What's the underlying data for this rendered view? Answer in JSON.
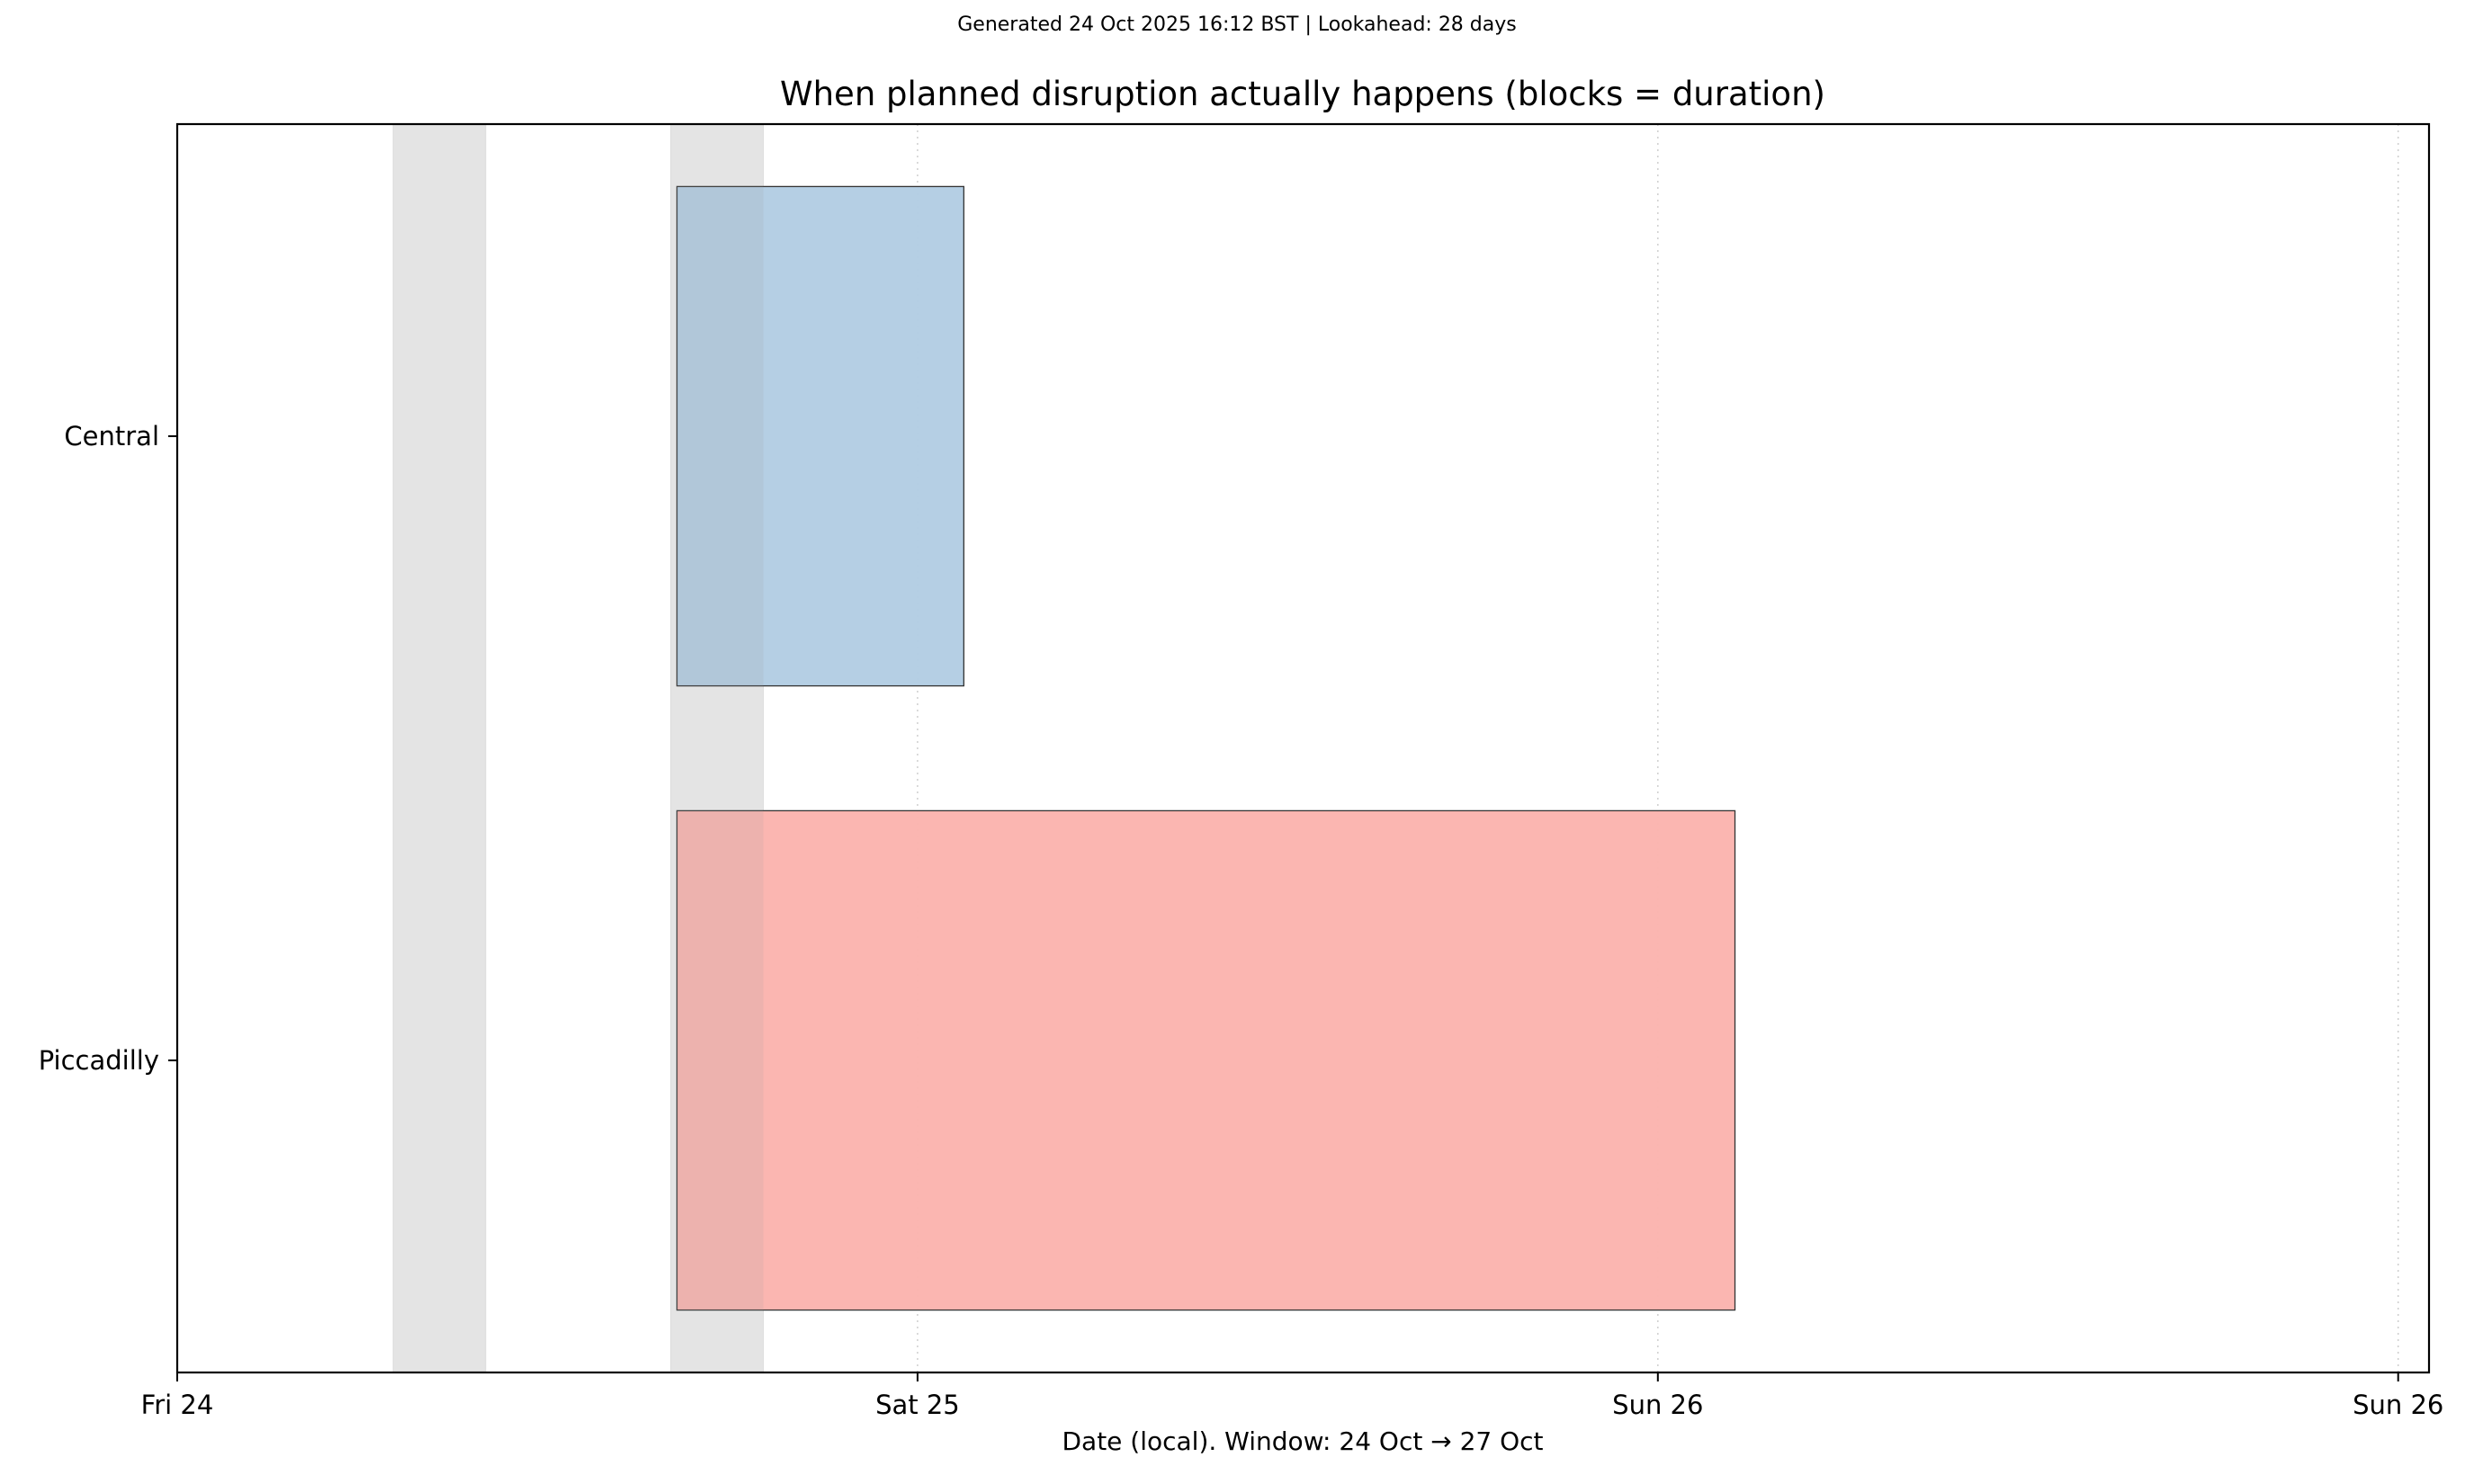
{
  "header": {
    "generated_line": "Generated 24 Oct 2025 16:12 BST | Lookahead: 28 days"
  },
  "chart_data": {
    "type": "gantt",
    "title": "When planned disruption actually happens (blocks = duration)",
    "xlabel": "Date (local). Window: 24 Oct → 27 Oct",
    "ylabel": "",
    "x_unit": "hours since Fri 24 Oct 00:00 local",
    "xlim": [
      0,
      73
    ],
    "x_ticks": [
      {
        "value": 0,
        "label": "Fri 24"
      },
      {
        "value": 24,
        "label": "Sat 25"
      },
      {
        "value": 48,
        "label": "Sun 26"
      },
      {
        "value": 72,
        "label": "Sun 26"
      }
    ],
    "grid": "vertical dotted at x ticks",
    "categories": [
      "Central",
      "Piccadilly"
    ],
    "bars": [
      {
        "line": "Central",
        "start": 16.2,
        "end": 25.5,
        "color": "#b3cde3"
      },
      {
        "line": "Piccadilly",
        "start": 16.2,
        "end": 50.5,
        "color": "#fbb4ae"
      }
    ],
    "shaded_spans": [
      {
        "start": 7.0,
        "end": 10.0
      },
      {
        "start": 16.0,
        "end": 19.0
      }
    ],
    "shade_color": "#f0f0f0"
  }
}
